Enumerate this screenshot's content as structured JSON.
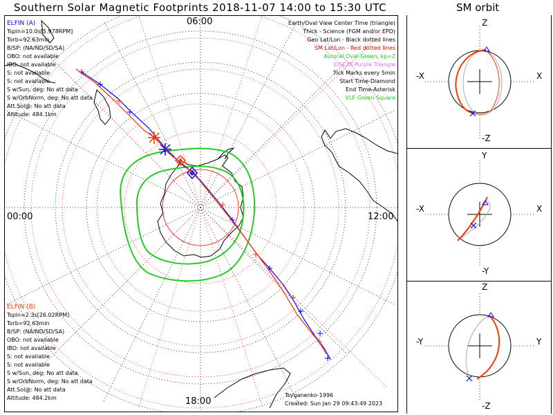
{
  "header": {
    "title": "Southern Solar Magnetic Footprints 2018-11-07 14:00 to 15:30 UTC",
    "sm_title": "SM orbit"
  },
  "map": {
    "time_top": "06:00",
    "time_left": "00:00",
    "time_right": "12:00",
    "time_bottom": "18:00"
  },
  "legend": [
    {
      "text": "Earth/Oval View Center Time (triangle)",
      "color": "#000000"
    },
    {
      "text": "Thick - Science (FGM and/or EPD)",
      "color": "#000000"
    },
    {
      "text": "Geo Lat/Lon - Black dotted lines",
      "color": "#000000"
    },
    {
      "text": "SM Lat/Lon - Red dotted lines",
      "color": "#ff0000"
    },
    {
      "text": "Auroral Oval-Green, kp=2",
      "color": "#22cc22"
    },
    {
      "text": "EISCAT-Purple Triangle",
      "color": "#ff66ff"
    },
    {
      "text": "Tick Marks every 5min",
      "color": "#000000"
    },
    {
      "text": "Start Time-Diamond",
      "color": "#000000"
    },
    {
      "text": "End Time-Asterisk",
      "color": "#000000"
    },
    {
      "text": "VLF-Green Square",
      "color": "#22cc22"
    }
  ],
  "elfin_a": {
    "name": "ELFIN (A)",
    "color": "#0000ff",
    "lines": [
      "Tspin=10.0s[5.978RPM]",
      "Torb=92.63min",
      "B/SP: (NA/ND/SD/SA)",
      "OBO: not available",
      "IBO: not available",
      "S: not available",
      "S: not available",
      "S w/Sun, deg: No att data",
      "S w/OrbNorm, deg: No att data",
      "Att.Sol@: No att data",
      "Altitude: 484.1km"
    ]
  },
  "elfin_b": {
    "name": "ELFIN (B)",
    "color": "#ff3300",
    "lines": [
      "Tspin=2.3s[26.02RPM]",
      "Torb=92.63min",
      "B/SP: (NA/ND/SD/SA)",
      "OBO: not available",
      "IBO: not available",
      "S: not available",
      "S: not available",
      "S w/Sun, deg: No att data",
      "S w/OrbNorm, deg: No att data",
      "Att.Sol@: No att data",
      "Altitude: 484.2km"
    ]
  },
  "footer": {
    "author": "Tsyganenko-1996",
    "created": "Created: Sun Jan 29 09:43:49 2023"
  },
  "orbit_panels": [
    {
      "top": "Z",
      "bottom": "-Z",
      "left": "-X",
      "right": "X"
    },
    {
      "top": "Y",
      "bottom": "-Y",
      "left": "-X",
      "right": "X"
    },
    {
      "top": "Z",
      "bottom": "-Z",
      "left": "-Y",
      "right": "Y"
    }
  ],
  "colors": {
    "elfin_a": "#0000ff",
    "elfin_b": "#ff3300",
    "oval": "#22cc22",
    "sm_grid": "#ff0000",
    "orbit_ref": "#aaaaaa"
  }
}
